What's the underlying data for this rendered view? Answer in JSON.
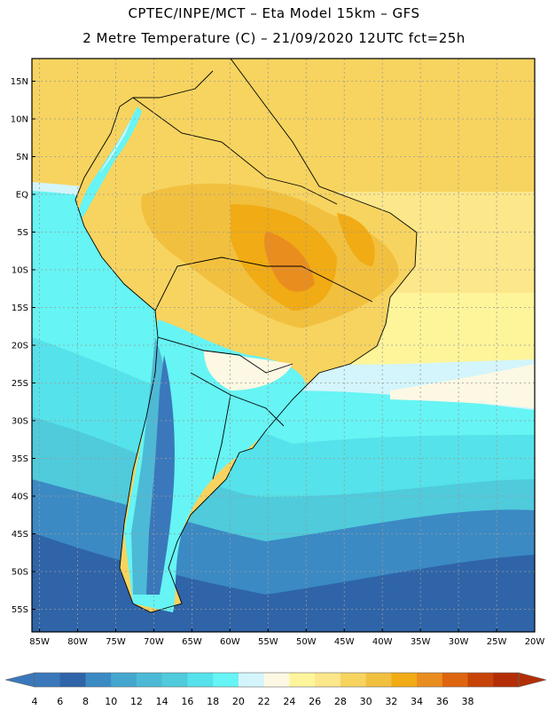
{
  "header": {
    "line1": "CPTEC/INPE/MCT –  Eta Model 15km – GFS",
    "line2": "2 Metre Temperature (C) – 21/09/2020 12UTC fct=25h"
  },
  "map": {
    "lon_range": [
      -86,
      -20
    ],
    "lat_range": [
      18,
      -58
    ],
    "lat_labels": [
      "15N",
      "10N",
      "5N",
      "EQ",
      "5S",
      "10S",
      "15S",
      "20S",
      "25S",
      "30S",
      "35S",
      "40S",
      "45S",
      "50S",
      "55S"
    ],
    "lat_values": [
      15,
      10,
      5,
      0,
      -5,
      -10,
      -15,
      -20,
      -25,
      -30,
      -35,
      -40,
      -45,
      -50,
      -55
    ],
    "lon_labels": [
      "85W",
      "80W",
      "75W",
      "70W",
      "65W",
      "60W",
      "55W",
      "50W",
      "45W",
      "40W",
      "35W",
      "30W",
      "25W",
      "20W"
    ],
    "lon_values": [
      -85,
      -80,
      -75,
      -70,
      -65,
      -60,
      -55,
      -50,
      -45,
      -40,
      -35,
      -30,
      -25,
      -20
    ]
  },
  "colorbar": {
    "labels": [
      "4",
      "6",
      "8",
      "10",
      "12",
      "14",
      "16",
      "18",
      "20",
      "22",
      "24",
      "26",
      "28",
      "30",
      "32",
      "34",
      "36",
      "38"
    ],
    "colors": [
      "#3a78bb",
      "#2f64a8",
      "#3b8ac4",
      "#45a7cf",
      "#4cbad6",
      "#4fcbdc",
      "#55e2ea",
      "#66f4f4",
      "#d3f5fb",
      "#fdf8e3",
      "#fef59b",
      "#fce78a",
      "#f7d45f",
      "#f2c03f",
      "#f1ab14",
      "#ea8d1f",
      "#de650f",
      "#c84307",
      "#b32e06"
    ]
  }
}
